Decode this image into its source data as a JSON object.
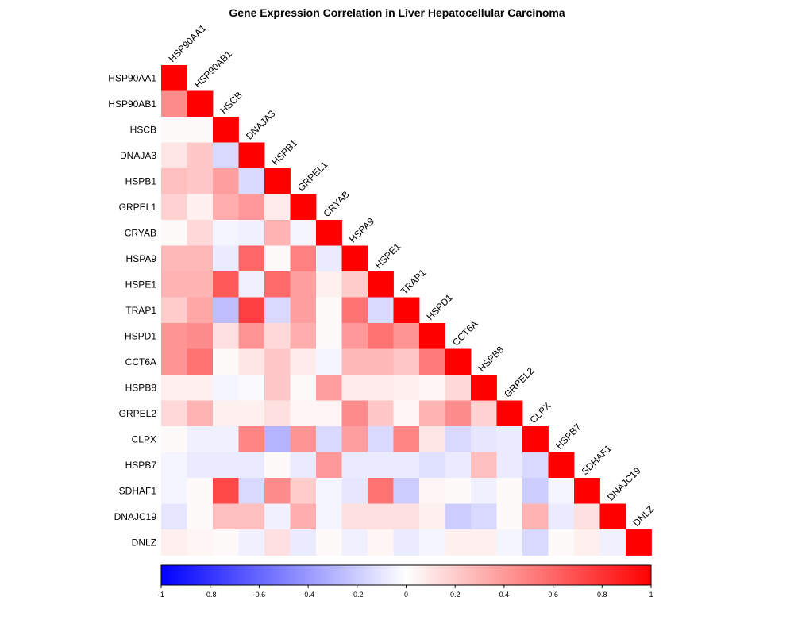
{
  "chart_data": {
    "type": "heatmap",
    "title": "Gene Expression Correlation in Liver Hepatocellular Carcinoma",
    "layout": "lower-triangle",
    "genes": [
      "HSP90AA1",
      "HSP90AB1",
      "HSCB",
      "DNAJA3",
      "HSPB1",
      "GRPEL1",
      "CRYAB",
      "HSPA9",
      "HSPE1",
      "TRAP1",
      "HSPD1",
      "CCT6A",
      "HSPB8",
      "GRPEL2",
      "CLPX",
      "HSPB7",
      "SDHAF1",
      "DNAJC19",
      "DNLZ"
    ],
    "matrix": [
      [
        1
      ],
      [
        0.45,
        1
      ],
      [
        0.02,
        0.02,
        1
      ],
      [
        0.1,
        0.22,
        -0.15,
        1
      ],
      [
        0.25,
        0.22,
        0.38,
        -0.15,
        1
      ],
      [
        0.18,
        0.06,
        0.32,
        0.4,
        0.08,
        1
      ],
      [
        0.02,
        0.15,
        -0.04,
        -0.06,
        0.3,
        -0.04,
        1
      ],
      [
        0.28,
        0.28,
        -0.08,
        0.6,
        0.02,
        0.5,
        -0.08,
        1
      ],
      [
        0.3,
        0.3,
        0.65,
        -0.06,
        0.58,
        0.38,
        0.06,
        0.2,
        1
      ],
      [
        0.2,
        0.35,
        -0.25,
        0.75,
        -0.15,
        0.38,
        0.02,
        0.55,
        -0.15,
        1
      ],
      [
        0.42,
        0.45,
        0.12,
        0.42,
        0.15,
        0.32,
        0.02,
        0.4,
        0.55,
        0.42,
        1
      ],
      [
        0.42,
        0.55,
        0.02,
        0.1,
        0.22,
        0.08,
        -0.04,
        0.28,
        0.28,
        0.22,
        0.52,
        1
      ],
      [
        0.06,
        0.06,
        -0.04,
        -0.02,
        0.22,
        0.02,
        0.38,
        0.08,
        0.08,
        0.06,
        0.04,
        0.15,
        1
      ],
      [
        0.15,
        0.3,
        0.06,
        0.06,
        0.12,
        0.04,
        0.04,
        0.45,
        0.22,
        0.04,
        0.3,
        0.45,
        0.18,
        1
      ],
      [
        0.02,
        -0.06,
        -0.06,
        0.48,
        -0.3,
        0.42,
        -0.15,
        0.38,
        -0.15,
        0.48,
        0.1,
        -0.15,
        -0.1,
        -0.08,
        1
      ],
      [
        -0.04,
        -0.08,
        -0.08,
        -0.08,
        0.02,
        -0.08,
        0.4,
        -0.08,
        -0.08,
        -0.08,
        -0.12,
        -0.08,
        0.25,
        -0.08,
        -0.15,
        1
      ],
      [
        -0.04,
        0.02,
        0.72,
        -0.15,
        0.45,
        0.2,
        -0.04,
        -0.1,
        0.55,
        -0.2,
        0.04,
        0.02,
        -0.06,
        0.02,
        -0.2,
        -0.04,
        1
      ],
      [
        -0.1,
        0.02,
        0.25,
        0.25,
        -0.06,
        0.32,
        -0.04,
        0.12,
        0.12,
        0.12,
        0.06,
        -0.2,
        -0.15,
        0.02,
        0.3,
        -0.08,
        0.12,
        1
      ],
      [
        0.06,
        0.04,
        0.02,
        -0.06,
        0.12,
        -0.08,
        0.02,
        -0.06,
        0.04,
        -0.08,
        -0.04,
        0.06,
        0.06,
        -0.04,
        -0.15,
        0.02,
        0.06,
        -0.06,
        1
      ]
    ],
    "colorbar": {
      "min": -1,
      "max": 1,
      "ticks": [
        -1,
        -0.8,
        -0.6,
        -0.4,
        -0.2,
        0,
        0.2,
        0.4,
        0.6,
        0.8,
        1
      ],
      "colors": {
        "negative": "#0000FF",
        "zero": "#FFFFFF",
        "positive": "#FF0000"
      }
    }
  }
}
